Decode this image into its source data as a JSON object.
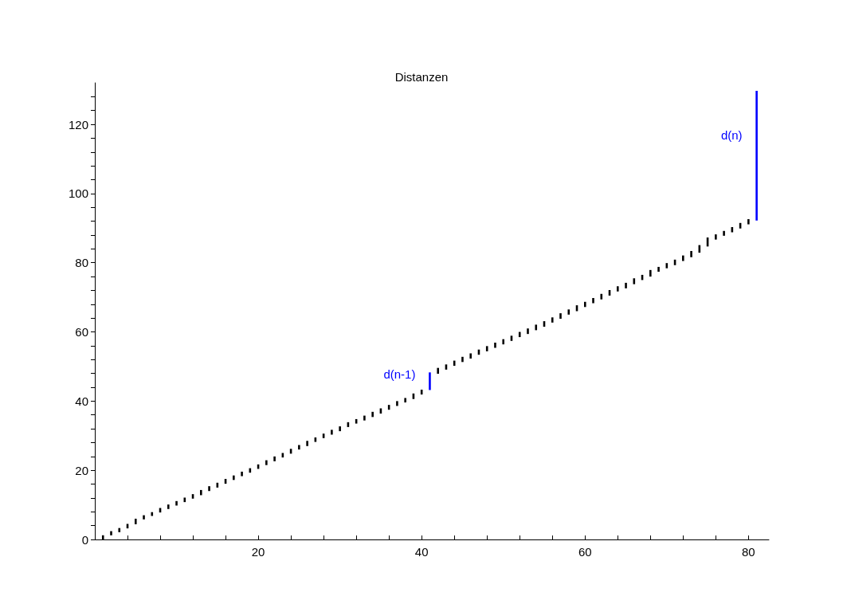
{
  "chart_data": {
    "type": "bar",
    "title": "Distanzen",
    "series": [
      {
        "color": "#000000",
        "x": [
          1,
          2,
          3,
          4,
          5,
          6,
          7,
          8,
          9,
          10,
          11,
          12,
          13,
          14,
          15,
          16,
          17,
          18,
          19,
          20,
          21,
          22,
          23,
          24,
          25,
          26,
          27,
          28,
          29,
          30,
          31,
          32,
          33,
          34,
          35,
          36,
          37,
          38,
          39,
          40,
          42,
          43,
          44,
          45,
          46,
          47,
          48,
          49,
          50,
          51,
          52,
          53,
          54,
          55,
          56,
          57,
          58,
          59,
          60,
          61,
          62,
          63,
          64,
          65,
          66,
          67,
          68,
          69,
          70,
          71,
          72,
          73,
          74,
          75,
          76,
          77,
          78,
          79,
          80
        ],
        "base": [
          0,
          1.2,
          2.1,
          3.2,
          4.4,
          5.8,
          6.8,
          7.8,
          8.8,
          9.8,
          10.8,
          11.8,
          12.8,
          14.0,
          15.0,
          16.1,
          17.2,
          18.3,
          19.3,
          20.4,
          21.5,
          22.6,
          23.7,
          24.8,
          26.0,
          27.0,
          28.2,
          29.3,
          30.3,
          31.3,
          32.5,
          33.5,
          34.4,
          35.4,
          36.4,
          37.5,
          38.6,
          39.6,
          40.6,
          41.9,
          47.9,
          49.1,
          50.2,
          51.3,
          52.3,
          53.4,
          54.4,
          55.4,
          56.4,
          57.4,
          58.5,
          59.4,
          60.5,
          61.5,
          62.7,
          63.8,
          65.0,
          66.0,
          67.2,
          68.3,
          69.4,
          70.5,
          71.7,
          72.6,
          73.8,
          75.0,
          76.0,
          77.4,
          78.4,
          79.3,
          80.5,
          81.6,
          82.9,
          84.7,
          86.7,
          87.8,
          88.8,
          89.9,
          91.1
        ],
        "values": [
          1.2,
          1.2,
          1.2,
          1.3,
          1.6,
          1.2,
          1.1,
          1.3,
          1.3,
          1.3,
          1.3,
          1.3,
          1.5,
          1.4,
          1.4,
          1.4,
          1.3,
          1.3,
          1.3,
          1.3,
          1.4,
          1.4,
          1.3,
          1.4,
          1.3,
          1.5,
          1.3,
          1.3,
          1.4,
          1.4,
          1.4,
          1.3,
          1.4,
          1.5,
          1.5,
          1.4,
          1.4,
          1.3,
          1.6,
          1.4,
          1.7,
          1.5,
          1.5,
          1.5,
          1.5,
          1.5,
          1.5,
          1.5,
          1.5,
          1.5,
          1.5,
          1.6,
          1.6,
          1.6,
          1.5,
          1.6,
          1.5,
          1.7,
          1.5,
          1.5,
          1.6,
          1.6,
          1.5,
          1.6,
          1.7,
          1.5,
          1.9,
          1.4,
          1.5,
          1.6,
          1.6,
          1.8,
          2.2,
          2.6,
          1.5,
          1.4,
          1.5,
          1.6,
          1.5
        ]
      },
      {
        "color": "#0000ff",
        "x": [
          41,
          81
        ],
        "base": [
          43.2,
          92.2
        ],
        "values": [
          5.1,
          37.5
        ]
      }
    ],
    "annotations": [
      {
        "text": "d(n-1)",
        "x": 41,
        "y": 47.7
      },
      {
        "text": "d(n)",
        "x": 81,
        "y": 117
      }
    ],
    "xlim": [
      0,
      82.5
    ],
    "xticks": [
      {
        "value": 4,
        "label": null
      },
      {
        "value": 8,
        "label": null
      },
      {
        "value": 12,
        "label": null
      },
      {
        "value": 16,
        "label": null
      },
      20,
      {
        "value": 24,
        "label": null
      },
      {
        "value": 28,
        "label": null
      },
      {
        "value": 32,
        "label": null
      },
      {
        "value": 36,
        "label": null
      },
      40,
      {
        "value": 44,
        "label": null
      },
      {
        "value": 48,
        "label": null
      },
      {
        "value": 52,
        "label": null
      },
      {
        "value": 56,
        "label": null
      },
      60,
      {
        "value": 64,
        "label": null
      },
      {
        "value": 68,
        "label": null
      },
      {
        "value": 72,
        "label": null
      },
      {
        "value": 76,
        "label": null
      },
      80
    ],
    "ylim": [
      0,
      132
    ],
    "yticks": [
      0,
      {
        "value": 4,
        "label": null
      },
      {
        "value": 8,
        "label": null
      },
      {
        "value": 12,
        "label": null
      },
      {
        "value": 16,
        "label": null
      },
      20,
      {
        "value": 24,
        "label": null
      },
      {
        "value": 28,
        "label": null
      },
      {
        "value": 32,
        "label": null
      },
      {
        "value": 36,
        "label": null
      },
      40,
      {
        "value": 44,
        "label": null
      },
      {
        "value": 48,
        "label": null
      },
      {
        "value": 52,
        "label": null
      },
      {
        "value": 56,
        "label": null
      },
      60,
      {
        "value": 64,
        "label": null
      },
      {
        "value": 68,
        "label": null
      },
      {
        "value": 72,
        "label": null
      },
      {
        "value": 76,
        "label": null
      },
      80,
      {
        "value": 84,
        "label": null
      },
      {
        "value": 88,
        "label": null
      },
      {
        "value": 92,
        "label": null
      },
      {
        "value": 96,
        "label": null
      },
      100,
      {
        "value": 104,
        "label": null
      },
      {
        "value": 108,
        "label": null
      },
      {
        "value": 112,
        "label": null
      },
      {
        "value": 116,
        "label": null
      },
      120,
      {
        "value": 124,
        "label": null
      },
      {
        "value": 128,
        "label": null
      }
    ],
    "tick_labels": "xy"
  }
}
